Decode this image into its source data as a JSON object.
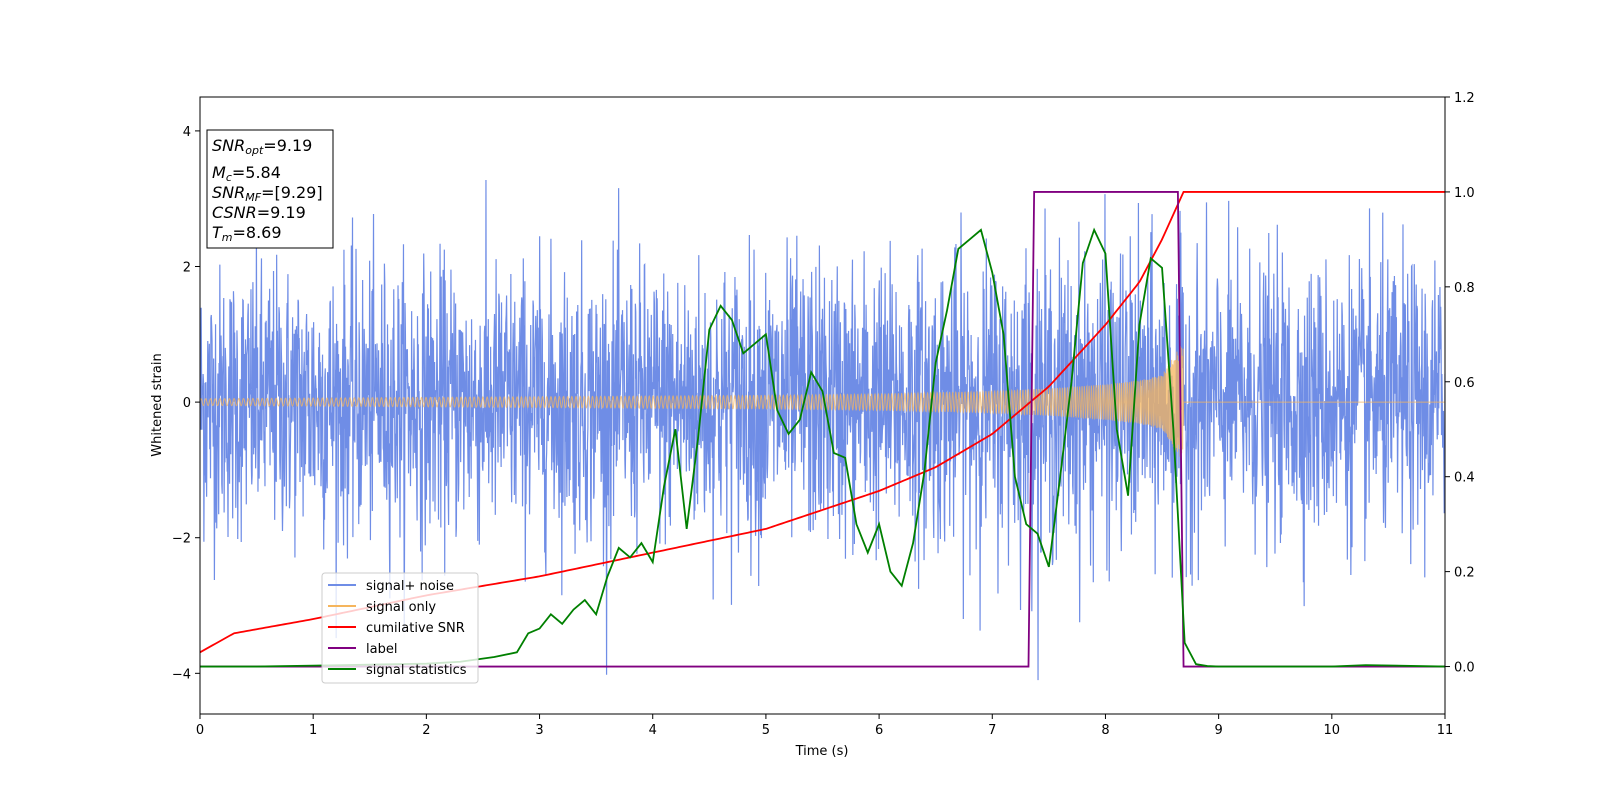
{
  "colors": {
    "noise": "#6f8de6",
    "signal": "#f5b55d",
    "cum_snr": "#ff0000",
    "label": "#800080",
    "stat": "#008000"
  },
  "info_box": {
    "line1_pre": "SNR",
    "line1_sub": "opt",
    "line1_val": "=9.19",
    "line2_pre": "M",
    "line2_sub": "c",
    "line2_val": "=5.84",
    "line3_pre": "SNR",
    "line3_sub": "MF",
    "line3_val": "=[9.29]",
    "line4_pre": "CSNR",
    "line4_val": "=9.19",
    "line5_pre": "T",
    "line5_sub": "m",
    "line5_val": "=8.69"
  },
  "chart_data": {
    "type": "line",
    "xlabel": "Time (s)",
    "ylabel": "Whitened strain",
    "xlim": [
      0,
      11
    ],
    "ylim": [
      -4.6,
      4.5
    ],
    "y2lim": [
      -0.1,
      1.2
    ],
    "xticks": [
      "0",
      "1",
      "2",
      "3",
      "4",
      "5",
      "6",
      "7",
      "8",
      "9",
      "10",
      "11"
    ],
    "yticks": [
      "4",
      "2",
      "0",
      "−2",
      "−4"
    ],
    "y2ticks": [
      "1.2",
      "1.0",
      "0.8",
      "0.6",
      "0.4",
      "0.2",
      "0.0"
    ],
    "grid": false,
    "legend_position": "lower-left",
    "legend": [
      "signal+ noise",
      "signal only",
      "cumilative SNR",
      "label",
      "signal statistics"
    ],
    "series": [
      {
        "name": "signal+ noise",
        "axis": "left",
        "description_points": {
          "x": [
            0,
            1,
            2,
            3,
            4,
            5,
            6,
            7,
            8,
            9,
            10,
            11
          ],
          "approx_amplitude": [
            2.6,
            2.6,
            2.6,
            2.6,
            2.6,
            2.7,
            2.7,
            2.8,
            2.9,
            2.6,
            2.6,
            2.6
          ]
        }
      },
      {
        "name": "signal only",
        "axis": "left",
        "x": [
          0,
          1,
          2,
          3,
          4,
          5,
          6,
          7,
          7.5,
          8,
          8.3,
          8.5,
          8.69,
          8.7,
          11
        ],
        "envelope": [
          0.05,
          0.06,
          0.07,
          0.08,
          0.09,
          0.1,
          0.12,
          0.16,
          0.2,
          0.26,
          0.32,
          0.4,
          0.9,
          0.0,
          0.0
        ]
      },
      {
        "name": "cumilative SNR",
        "axis": "right",
        "x": [
          0,
          0.3,
          1,
          2,
          3,
          4,
          5,
          6,
          6.5,
          7,
          7.5,
          8,
          8.3,
          8.5,
          8.69,
          11
        ],
        "values": [
          0.03,
          0.07,
          0.1,
          0.15,
          0.19,
          0.24,
          0.29,
          0.37,
          0.42,
          0.49,
          0.59,
          0.72,
          0.81,
          0.9,
          1.0,
          1.0
        ]
      },
      {
        "name": "label",
        "axis": "right",
        "x": [
          0,
          7.32,
          7.37,
          8.64,
          8.69,
          11
        ],
        "values": [
          0,
          0,
          1,
          1,
          0,
          0
        ]
      },
      {
        "name": "signal statistics",
        "axis": "right",
        "x": [
          0,
          0.5,
          1,
          1.5,
          2,
          2.3,
          2.6,
          2.8,
          2.9,
          3.0,
          3.1,
          3.2,
          3.3,
          3.4,
          3.5,
          3.6,
          3.7,
          3.8,
          3.9,
          4.0,
          4.1,
          4.2,
          4.3,
          4.4,
          4.5,
          4.6,
          4.7,
          4.8,
          4.9,
          5.0,
          5.1,
          5.2,
          5.3,
          5.4,
          5.5,
          5.6,
          5.7,
          5.8,
          5.9,
          6.0,
          6.1,
          6.2,
          6.3,
          6.4,
          6.5,
          6.6,
          6.7,
          6.8,
          6.9,
          7.0,
          7.1,
          7.2,
          7.3,
          7.4,
          7.5,
          7.6,
          7.7,
          7.8,
          7.9,
          8.0,
          8.1,
          8.2,
          8.3,
          8.4,
          8.5,
          8.6,
          8.7,
          8.8,
          8.9,
          9.0,
          10.0,
          10.3,
          11.0
        ],
        "values": [
          0.0,
          0.0,
          0.002,
          0.004,
          0.006,
          0.01,
          0.02,
          0.03,
          0.07,
          0.08,
          0.11,
          0.09,
          0.12,
          0.14,
          0.11,
          0.19,
          0.25,
          0.23,
          0.26,
          0.22,
          0.38,
          0.5,
          0.29,
          0.48,
          0.71,
          0.76,
          0.73,
          0.66,
          0.68,
          0.7,
          0.54,
          0.49,
          0.52,
          0.62,
          0.58,
          0.45,
          0.44,
          0.3,
          0.24,
          0.3,
          0.2,
          0.17,
          0.26,
          0.41,
          0.64,
          0.75,
          0.88,
          0.9,
          0.92,
          0.83,
          0.7,
          0.4,
          0.3,
          0.28,
          0.21,
          0.4,
          0.6,
          0.85,
          0.92,
          0.87,
          0.5,
          0.36,
          0.72,
          0.86,
          0.84,
          0.5,
          0.05,
          0.005,
          0.001,
          0.0,
          0.0,
          0.003,
          0.0
        ]
      }
    ]
  }
}
